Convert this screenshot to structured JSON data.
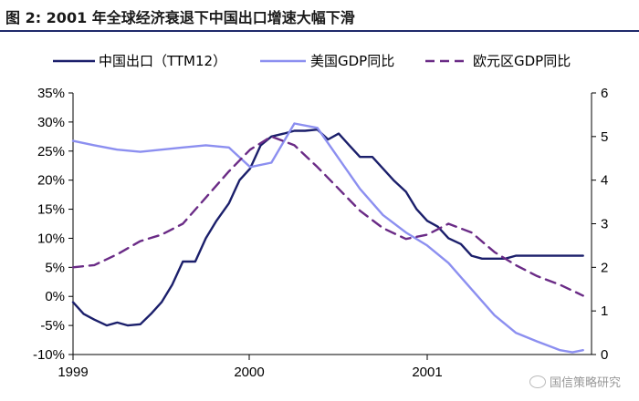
{
  "title": "图 2: 2001 年全球经济衰退下中国出口增速大幅下滑",
  "watermark": "国信策略研究",
  "colors": {
    "china": "#1b1f6b",
    "us": "#8c8ff0",
    "euro": "#6a2b86",
    "title_rule": "#1f2a6b"
  },
  "chart_data": {
    "type": "line",
    "legend_position": "top",
    "grid": false,
    "x_ticks": [
      "1999",
      "2000",
      "2001"
    ],
    "x_range": [
      1999.0,
      2001.88
    ],
    "y_left": {
      "range": [
        -10,
        35
      ],
      "tick_labels": [
        "35%",
        "30%",
        "25%",
        "20%",
        "15%",
        "10%",
        "5%",
        "0%",
        "-5%",
        "-10%"
      ]
    },
    "y_right": {
      "range": [
        0,
        6
      ],
      "tick_labels": [
        "6",
        "5",
        "4",
        "3",
        "2",
        "1",
        "0"
      ]
    },
    "series": [
      {
        "name": "中国出口（TTM12）",
        "axis": "left",
        "style": "solid",
        "x": [
          1999.0,
          1999.06,
          1999.12,
          1999.19,
          1999.25,
          1999.31,
          1999.38,
          1999.44,
          1999.5,
          1999.56,
          1999.62,
          1999.69,
          1999.75,
          1999.81,
          1999.88,
          1999.94,
          2000.0,
          2000.06,
          2000.12,
          2000.19,
          2000.25,
          2000.31,
          2000.38,
          2000.44,
          2000.5,
          2000.56,
          2000.62,
          2000.69,
          2000.75,
          2000.81,
          2000.88,
          2000.94,
          2001.0,
          2001.06,
          2001.12,
          2001.19,
          2001.25,
          2001.31,
          2001.38,
          2001.44,
          2001.5,
          2001.56,
          2001.62,
          2001.69,
          2001.75,
          2001.81,
          2001.88
        ],
        "values": [
          -1,
          -3,
          -4,
          -5,
          -4.5,
          -5,
          -4.8,
          -3,
          -1,
          2,
          6,
          6,
          10,
          13,
          16,
          20,
          22,
          26,
          27.5,
          28,
          28.5,
          28.5,
          28.7,
          27,
          28,
          26,
          24,
          24,
          22,
          20,
          18,
          15,
          13,
          12,
          10,
          9,
          7,
          6.5,
          6.5,
          6.5,
          7,
          7,
          7,
          7,
          7,
          7,
          7
        ]
      },
      {
        "name": "美国GDP同比",
        "axis": "right",
        "style": "solid",
        "x": [
          1999.0,
          1999.12,
          1999.25,
          1999.38,
          1999.5,
          1999.62,
          1999.75,
          1999.88,
          2000.0,
          2000.12,
          2000.25,
          2000.38,
          2000.5,
          2000.62,
          2000.75,
          2000.88,
          2001.0,
          2001.12,
          2001.25,
          2001.38,
          2001.5,
          2001.62,
          2001.75,
          2001.82,
          2001.88
        ],
        "values": [
          4.9,
          4.8,
          4.7,
          4.65,
          4.7,
          4.75,
          4.8,
          4.75,
          4.3,
          4.4,
          5.3,
          5.2,
          4.5,
          3.8,
          3.2,
          2.8,
          2.5,
          2.1,
          1.5,
          0.9,
          0.5,
          0.3,
          0.1,
          0.05,
          0.1
        ]
      },
      {
        "name": "欧元区GDP同比",
        "axis": "right",
        "style": "dashed",
        "x": [
          1999.0,
          1999.12,
          1999.25,
          1999.38,
          1999.5,
          1999.62,
          1999.75,
          1999.88,
          2000.0,
          2000.12,
          2000.25,
          2000.38,
          2000.5,
          2000.62,
          2000.75,
          2000.88,
          2001.0,
          2001.12,
          2001.25,
          2001.38,
          2001.5,
          2001.62,
          2001.75,
          2001.88
        ],
        "values": [
          2.0,
          2.05,
          2.3,
          2.6,
          2.75,
          3.0,
          3.6,
          4.2,
          4.7,
          5.0,
          4.8,
          4.3,
          3.8,
          3.3,
          2.9,
          2.65,
          2.75,
          3.0,
          2.8,
          2.35,
          2.05,
          1.8,
          1.6,
          1.35
        ]
      }
    ]
  }
}
